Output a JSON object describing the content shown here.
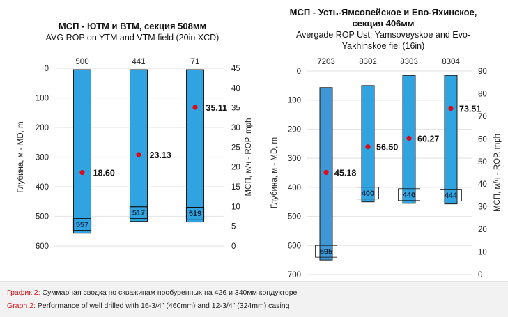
{
  "colors": {
    "bar": "#2fa4e0",
    "bar_alt": "#3f97d6",
    "bar_border": "#1d1d1d",
    "point": "#e30613",
    "grid": "#e6e6e6",
    "caption_label": "#c8161d"
  },
  "chart_data": [
    {
      "type": "bar",
      "subtype": "floating-range-with-points",
      "title": "МСП - ЮТМ и ВТМ, секция 508мм",
      "subtitle": "AVG ROP on YTM and VTM field (20in XCD)",
      "categories": [
        "500",
        "441",
        "71"
      ],
      "ylabel": "Глубина, м - MD, m",
      "y2label": "МСП, м/ч - ROP, mph",
      "ylim": [
        0,
        600
      ],
      "yticks": [
        0,
        100,
        200,
        300,
        400,
        500,
        600
      ],
      "y_inverted": true,
      "y2lim": [
        0,
        45
      ],
      "y2ticks": [
        0,
        5,
        10,
        15,
        20,
        25,
        30,
        35,
        40,
        45
      ],
      "grid": true,
      "series": [
        {
          "name": "Depth interval",
          "axis": "left",
          "start": [
            0,
            0,
            0
          ],
          "end": [
            557,
            517,
            519
          ],
          "end_labels": [
            "557",
            "517",
            "519"
          ]
        },
        {
          "name": "ROP",
          "axis": "right",
          "values": [
            18.6,
            23.13,
            35.11
          ],
          "labels": [
            "18.60",
            "23.13",
            "35.11"
          ]
        }
      ]
    },
    {
      "type": "bar",
      "subtype": "floating-range-with-points",
      "title": "МСП - Усть-Ямсовейское и Ево-Яхинское, секция 406мм",
      "title_lines": [
        "МСП - Усть-Ямсовейское и Ево-Яхинское,",
        "секция 406мм"
      ],
      "subtitle": "Avergade ROP Ust; Yamsoveyskoe and Evo-Yakhinskoe fiel (16in)",
      "subtitle_lines": [
        "Avergade ROP Ust; Yamsoveyskoe and Evo-",
        "Yakhinskoe fiel (16in)"
      ],
      "categories": [
        "7203",
        "8302",
        "8303",
        "8304"
      ],
      "ylabel": "Глубина, м - MD, m",
      "y2label": "МСП, м/ч - ROP, mph",
      "ylim": [
        0,
        700
      ],
      "yticks": [
        0,
        100,
        200,
        300,
        400,
        500,
        600,
        700
      ],
      "y_inverted": true,
      "y2lim": [
        0,
        90
      ],
      "y2ticks": [
        0,
        10,
        20,
        30,
        40,
        50,
        60,
        70,
        80,
        90
      ],
      "grid": true,
      "series": [
        {
          "name": "Depth interval",
          "axis": "left",
          "start": [
            57,
            50,
            15,
            15
          ],
          "end": [
            650,
            450,
            455,
            457
          ],
          "end_labels": [
            "595",
            "400",
            "440",
            "444"
          ]
        },
        {
          "name": "ROP",
          "axis": "right",
          "values": [
            45.18,
            56.5,
            60.27,
            73.51
          ],
          "labels": [
            "45.18",
            "56.50",
            "60.27",
            "73.51"
          ]
        }
      ]
    }
  ],
  "caption": {
    "ru_label": "График 2:",
    "ru_text": " Суммарная сводка по скважинам пробуренных на 426 и 340мм кондукторе",
    "en_label": "Graph 2:",
    "en_text": " Performance of well drilled with 16-3/4\" (460mm) and 12-3/4\" (324mm) casing"
  }
}
